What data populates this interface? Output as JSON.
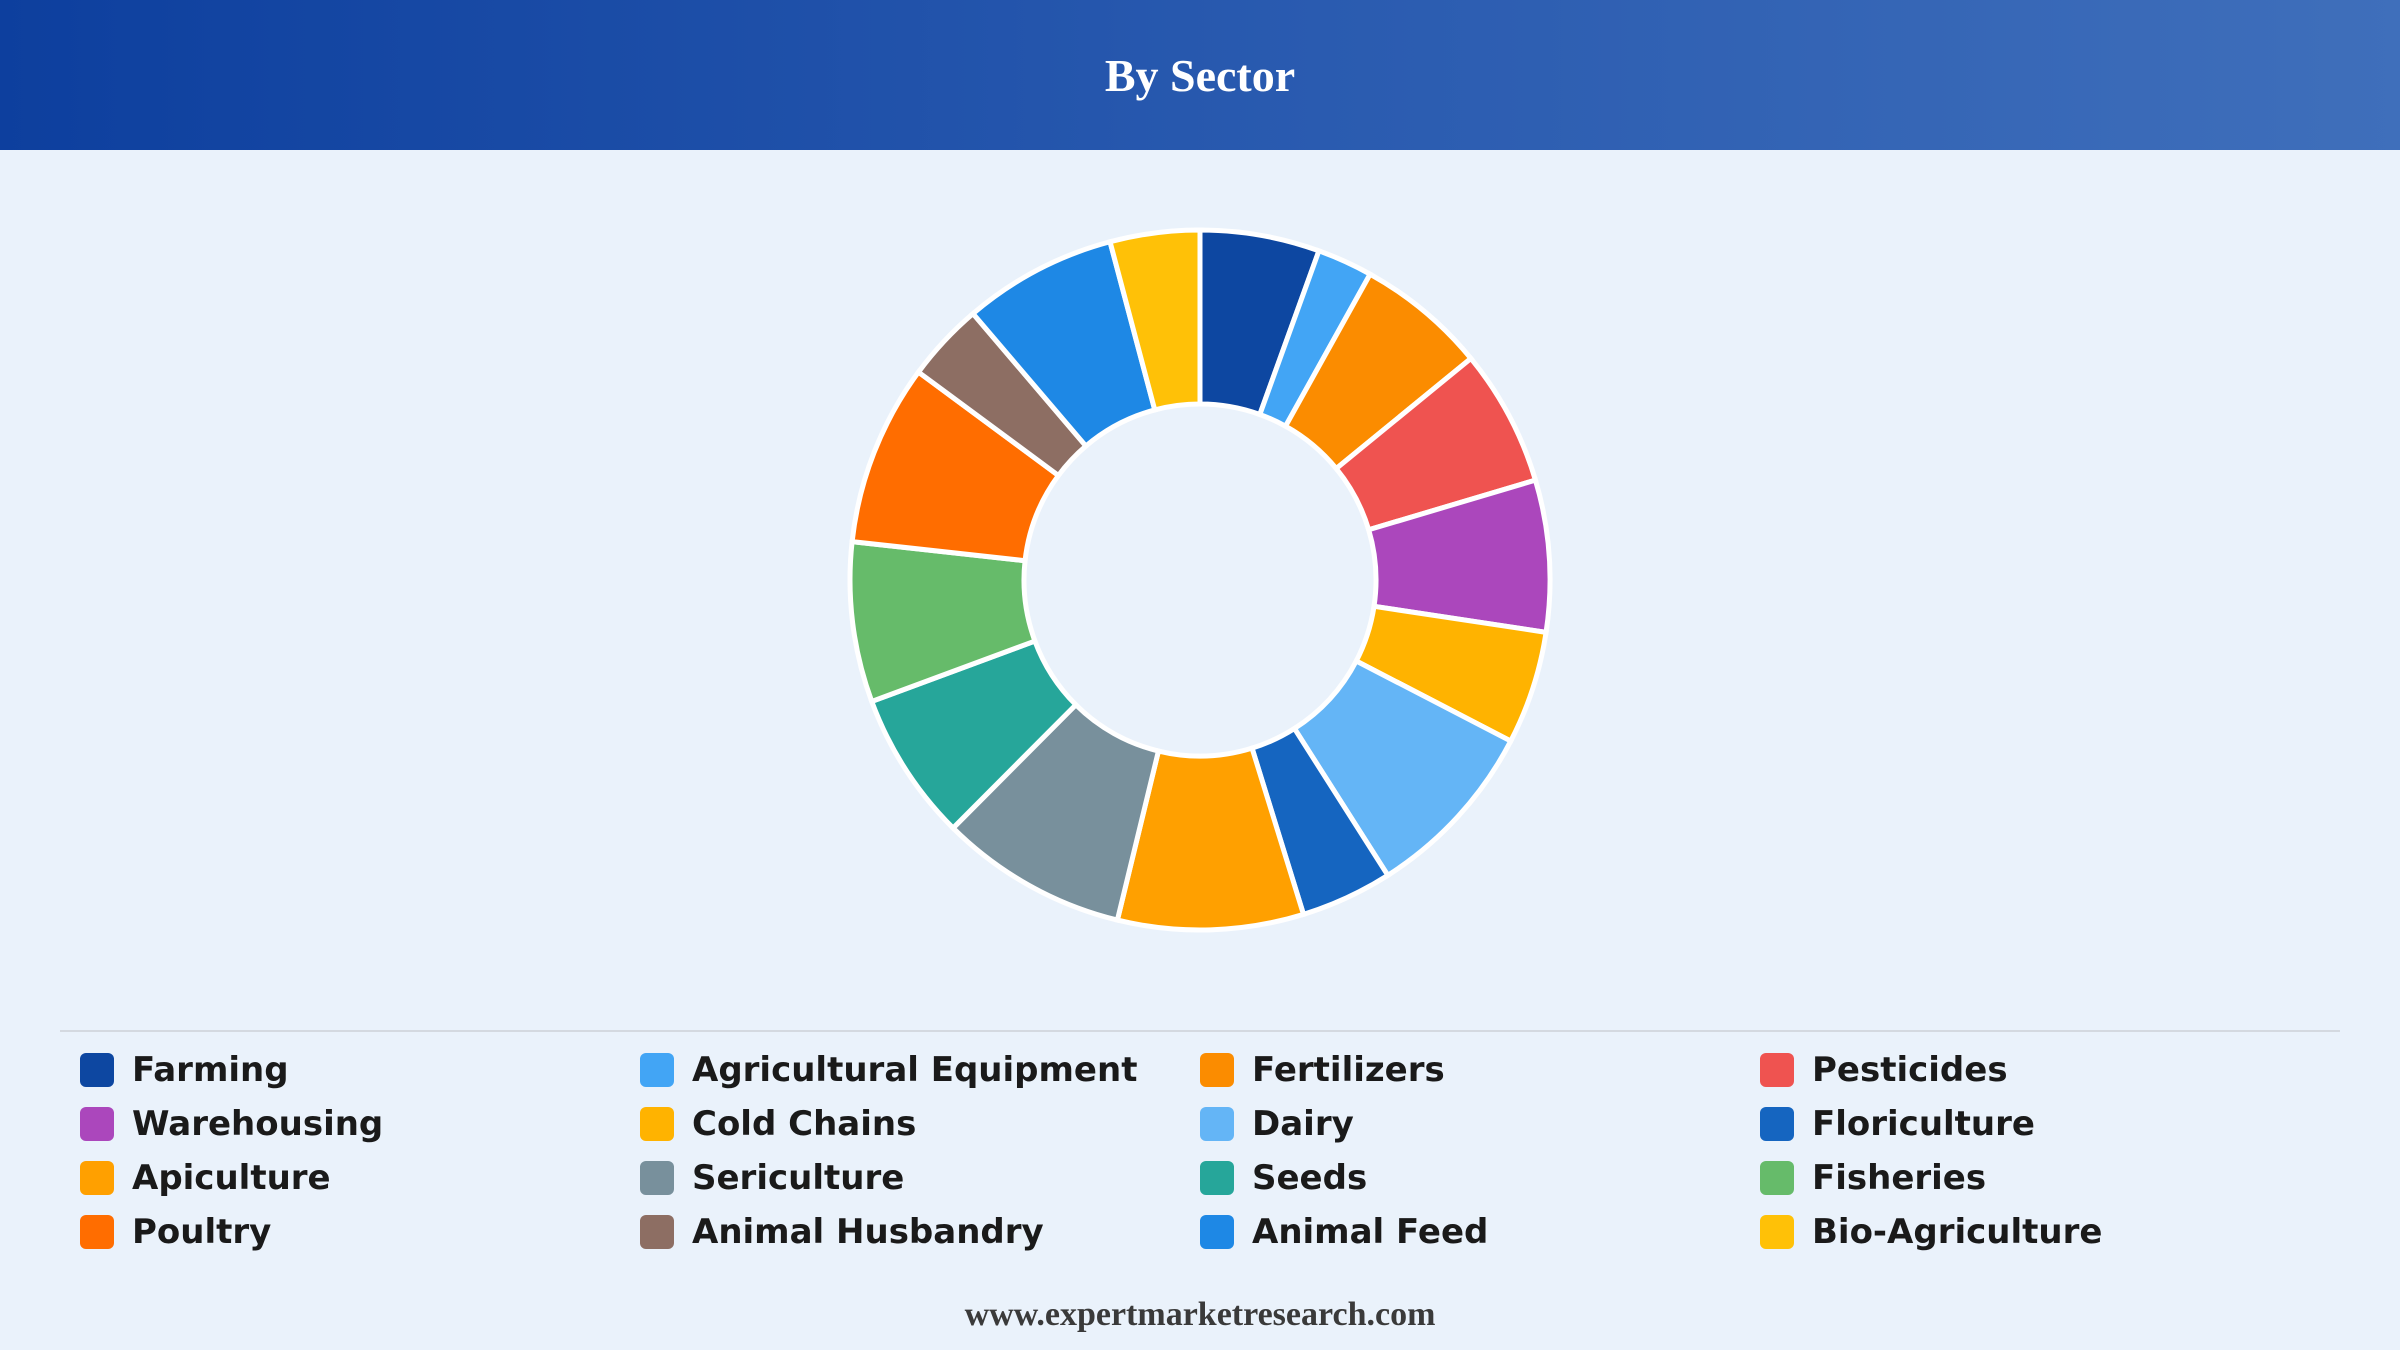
{
  "header": {
    "title": "By Sector"
  },
  "footer": {
    "text": "www.expertmarketresearch.com"
  },
  "chart_data": {
    "type": "pie",
    "title": "By Sector",
    "donut": true,
    "legend_position": "bottom",
    "categories": [
      "Farming",
      "Agricultural Equipment",
      "Fertilizers",
      "Pesticides",
      "Warehousing",
      "Cold Chains",
      "Dairy",
      "Floriculture",
      "Apiculture",
      "Sericulture",
      "Seeds",
      "Fisheries",
      "Poultry",
      "Animal Husbandry",
      "Animal Feed",
      "Bio-Agriculture"
    ],
    "values": [
      5.6,
      2.6,
      6.1,
      6.4,
      7.1,
      5.3,
      8.5,
      4.3,
      8.7,
      8.8,
      7.0,
      7.5,
      8.5,
      3.7,
      7.2,
      4.2
    ],
    "colors": [
      "#0d47a1",
      "#42a5f5",
      "#fb8c00",
      "#ef5350",
      "#ab47bc",
      "#ffb300",
      "#64b5f6",
      "#1565c0",
      "#ffa000",
      "#78909c",
      "#26a69a",
      "#66bb6a",
      "#ff6d00",
      "#8d6e63",
      "#1e88e5",
      "#ffc107"
    ]
  }
}
